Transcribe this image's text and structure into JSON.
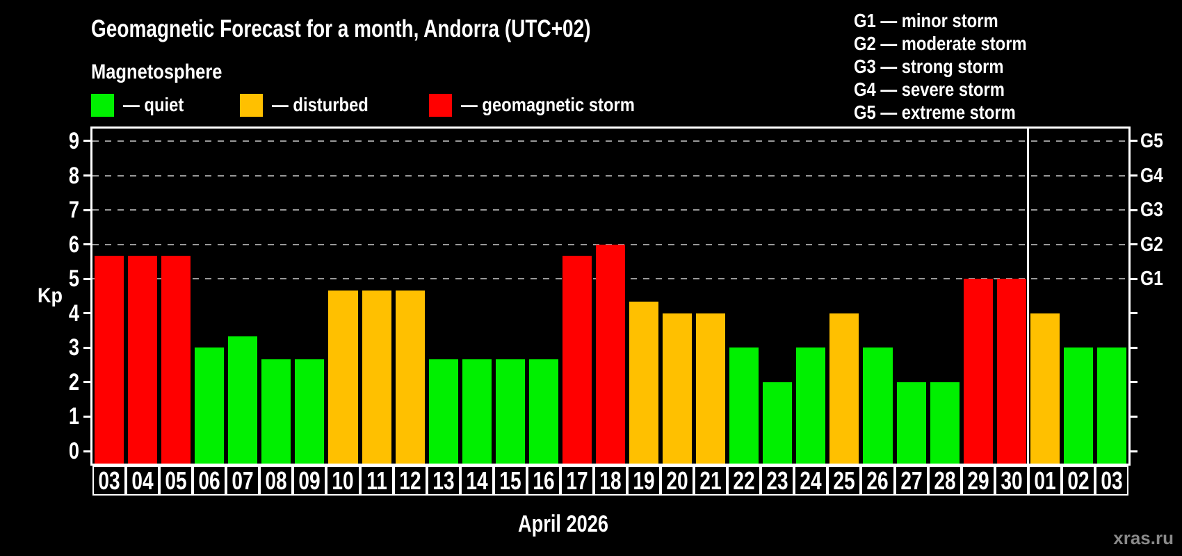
{
  "title": "Geomagnetic Forecast for a month, Andorra (UTC+02)",
  "subtitle": "Magnetosphere",
  "legend": {
    "items": [
      {
        "label": "— quiet",
        "status": "quiet"
      },
      {
        "label": "— disturbed",
        "status": "disturbed"
      },
      {
        "label": "— geomagnetic storm",
        "status": "storm"
      }
    ]
  },
  "g_scale_legend": [
    "G1 — minor storm",
    "G2 — moderate storm",
    "G3 — strong storm",
    "G4 — severe storm",
    "G5 — extreme storm"
  ],
  "watermark": "xras.ru",
  "colors": {
    "quiet": "#00f000",
    "disturbed": "#ffc000",
    "storm": "#ff0000",
    "gridline": "#999999",
    "frame": "#ffffff",
    "background": "#000000",
    "watermark": "#8a8a8a"
  },
  "chart_data": {
    "type": "bar",
    "title": "Geomagnetic Forecast for a month, Andorra (UTC+02)",
    "xlabel": "April 2026",
    "ylabel": "Kp",
    "ylim": [
      -0.4,
      9.4
    ],
    "y_ticks": [
      0,
      1,
      2,
      3,
      4,
      5,
      6,
      7,
      8,
      9
    ],
    "gridlines_at": [
      5,
      6,
      7,
      8,
      9
    ],
    "grid": "dashed horizontal at Kp 5-9 only",
    "legend_position": "top",
    "right_axis_labels": [
      {
        "label": "G1",
        "kp": 5
      },
      {
        "label": "G2",
        "kp": 6
      },
      {
        "label": "G3",
        "kp": 7
      },
      {
        "label": "G4",
        "kp": 8
      },
      {
        "label": "G5",
        "kp": 9
      }
    ],
    "month_separator_before_index": 28,
    "categories": [
      "03",
      "04",
      "05",
      "06",
      "07",
      "08",
      "09",
      "10",
      "11",
      "12",
      "13",
      "14",
      "15",
      "16",
      "17",
      "18",
      "19",
      "20",
      "21",
      "22",
      "23",
      "24",
      "25",
      "26",
      "27",
      "28",
      "29",
      "30",
      "01",
      "02",
      "03"
    ],
    "values": [
      5.67,
      5.67,
      5.67,
      3,
      3.33,
      2.67,
      2.67,
      4.67,
      4.67,
      4.67,
      2.67,
      2.67,
      2.67,
      2.67,
      5.67,
      6,
      4.33,
      4,
      4,
      3,
      2,
      3,
      4,
      3,
      2,
      2,
      5,
      5,
      4,
      3,
      3
    ],
    "statuses": [
      "storm",
      "storm",
      "storm",
      "quiet",
      "quiet",
      "quiet",
      "quiet",
      "disturbed",
      "disturbed",
      "disturbed",
      "quiet",
      "quiet",
      "quiet",
      "quiet",
      "storm",
      "storm",
      "disturbed",
      "disturbed",
      "disturbed",
      "quiet",
      "quiet",
      "quiet",
      "disturbed",
      "quiet",
      "quiet",
      "quiet",
      "storm",
      "storm",
      "disturbed",
      "quiet",
      "quiet"
    ]
  }
}
